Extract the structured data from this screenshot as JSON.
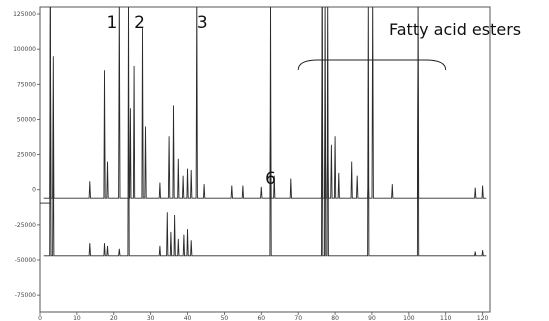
{
  "chart_data": {
    "type": "line",
    "title": "",
    "xlabel": "",
    "ylabel": "",
    "xlim": [
      0,
      122
    ],
    "ylim": [
      -87000,
      130000
    ],
    "x_ticks": [
      0,
      10,
      20,
      30,
      40,
      50,
      60,
      70,
      80,
      90,
      100,
      110,
      120
    ],
    "y_ticks": [
      125000,
      100000,
      75000,
      50000,
      25000,
      0,
      -25000,
      -50000,
      -75000
    ],
    "x_tick_labels": [
      "0",
      "10",
      "20",
      "30",
      "40",
      "50",
      "60",
      "70",
      "80",
      "90",
      "100",
      "110",
      "120"
    ],
    "y_tick_labels": [
      "125000",
      "100000",
      "75000",
      "50000",
      "25000",
      "0",
      "-25000",
      "-50000",
      "-75000"
    ],
    "grid": false,
    "series": [
      {
        "baseline": -6000,
        "peaks": [
          [
            2.8,
            140000
          ],
          [
            3.6,
            95000
          ],
          [
            13.5,
            6000
          ],
          [
            17.5,
            85000
          ],
          [
            18.3,
            20000
          ],
          [
            21.5,
            140000
          ],
          [
            24.5,
            58000
          ],
          [
            25.5,
            88000
          ],
          [
            27.8,
            115000
          ],
          [
            28.6,
            45000
          ],
          [
            32.5,
            5000
          ],
          [
            35.0,
            38000
          ],
          [
            36.2,
            60000
          ],
          [
            37.5,
            22000
          ],
          [
            38.8,
            10000
          ],
          [
            40.0,
            15000
          ],
          [
            41.0,
            14000
          ],
          [
            42.5,
            140000
          ],
          [
            44.5,
            4000
          ],
          [
            52.0,
            3000
          ],
          [
            55.0,
            3000
          ],
          [
            60.0,
            2000
          ],
          [
            62.5,
            55000
          ],
          [
            63.5,
            10000
          ],
          [
            68.0,
            8000
          ],
          [
            76.5,
            140000
          ],
          [
            77.3,
            70000
          ],
          [
            78.0,
            50000
          ],
          [
            79.0,
            32000
          ],
          [
            80.0,
            38000
          ],
          [
            81.0,
            12000
          ],
          [
            84.5,
            20000
          ],
          [
            86.0,
            10000
          ],
          [
            89.0,
            8000
          ],
          [
            90.2,
            140000
          ],
          [
            95.5,
            4000
          ],
          [
            102.5,
            110000
          ],
          [
            118.0,
            1500
          ],
          [
            120.0,
            3000
          ]
        ]
      },
      {
        "baseline": -47000,
        "peaks": [
          [
            2.8,
            140000
          ],
          [
            3.6,
            40000
          ],
          [
            13.5,
            -38000
          ],
          [
            17.5,
            -38000
          ],
          [
            18.3,
            -40000
          ],
          [
            21.5,
            -42000
          ],
          [
            24.0,
            140000
          ],
          [
            32.5,
            -40000
          ],
          [
            34.5,
            -16000
          ],
          [
            35.5,
            -30000
          ],
          [
            36.5,
            -18000
          ],
          [
            37.5,
            -35000
          ],
          [
            39.0,
            -32000
          ],
          [
            40.0,
            -28000
          ],
          [
            41.0,
            -36000
          ],
          [
            62.5,
            140000
          ],
          [
            76.5,
            140000
          ],
          [
            77.3,
            140000
          ],
          [
            78.0,
            140000
          ],
          [
            89.0,
            140000
          ],
          [
            102.5,
            140000
          ],
          [
            118.0,
            -44000
          ],
          [
            120.0,
            -43000
          ]
        ]
      },
      {
        "baseline": -9500,
        "peaks": [],
        "x_range": [
          0,
          3
        ]
      }
    ],
    "peak_labels": [
      {
        "text": "1",
        "x": 19.5
      },
      {
        "text": "2",
        "x": 27.0
      },
      {
        "text": "3",
        "x": 44.0
      },
      {
        "text": "6",
        "x": 62.5
      }
    ],
    "annotation": {
      "text": "Fatty acid esters",
      "bracket_x": [
        70,
        110
      ]
    }
  }
}
